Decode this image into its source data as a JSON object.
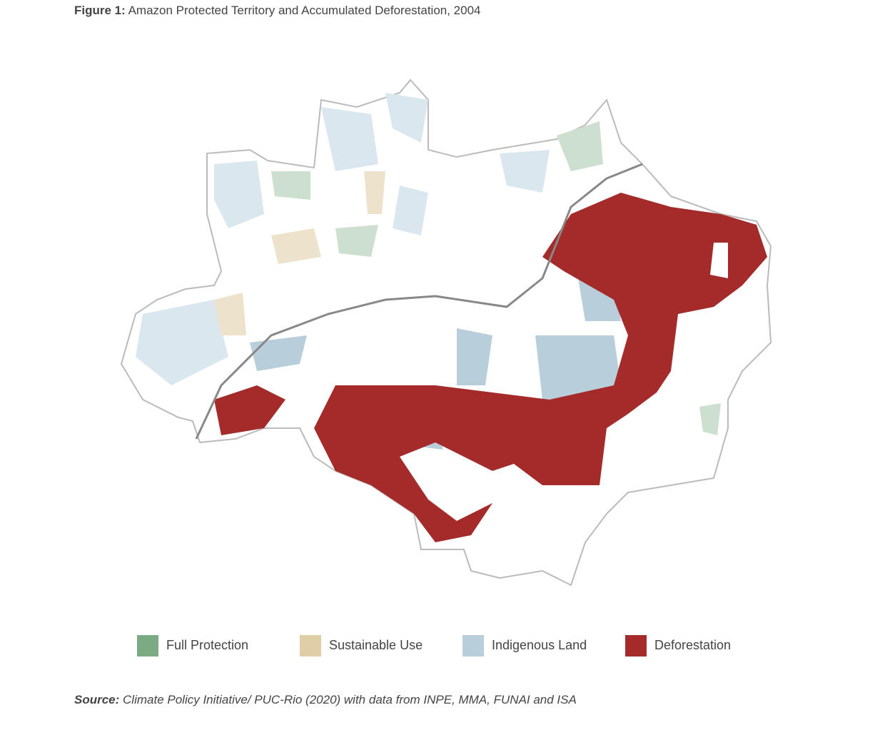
{
  "figure": {
    "label": "Figure 1:",
    "title": "Amazon Protected Territory and Accumulated Deforestation, 2004"
  },
  "legend": [
    {
      "name": "Full Protection",
      "color": "#7aab82"
    },
    {
      "name": "Sustainable Use",
      "color": "#e0cfa6"
    },
    {
      "name": "Indigenous Land",
      "color": "#b8ceda"
    },
    {
      "name": "Deforestation",
      "color": "#a52a2a"
    }
  ],
  "source": {
    "label": "Source:",
    "text": "Climate Policy Initiative/ PUC-Rio (2020) with data from INPE, MMA, FUNAI and ISA"
  }
}
